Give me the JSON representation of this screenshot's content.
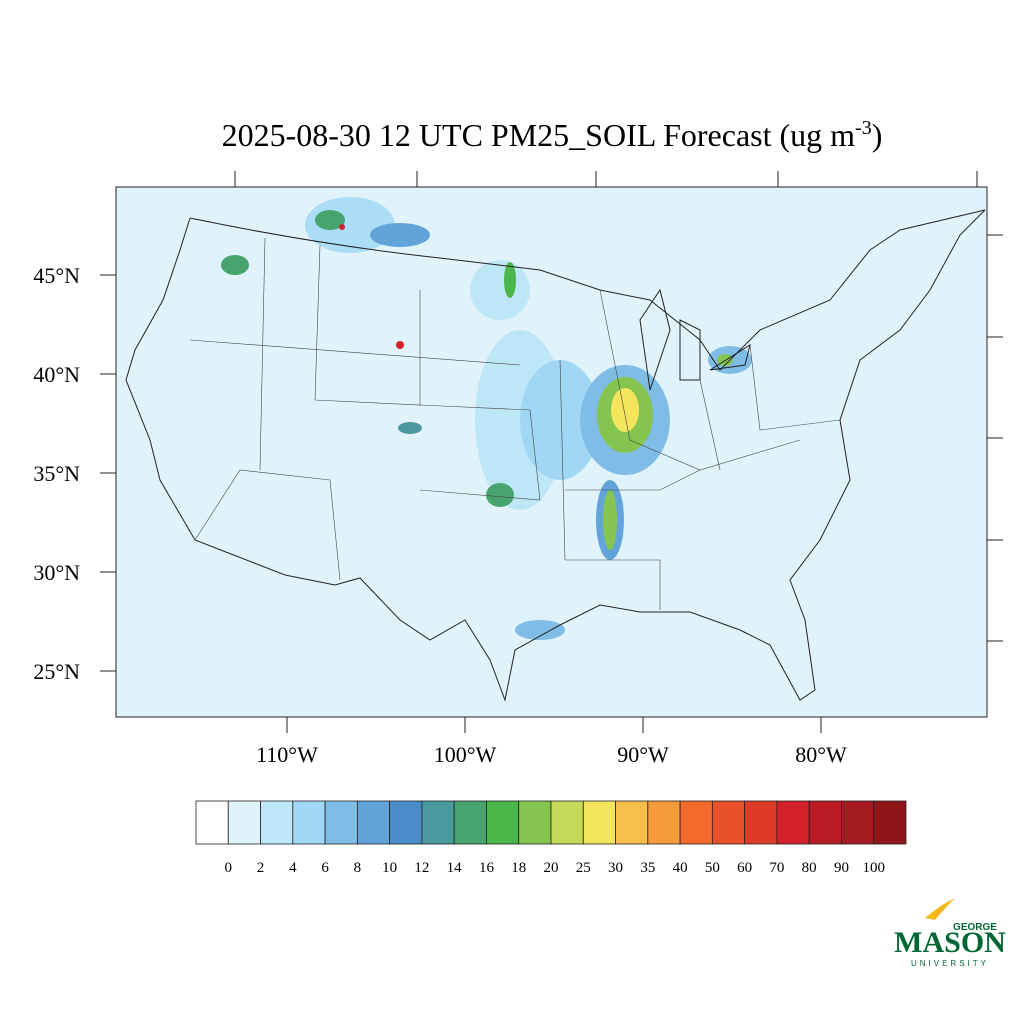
{
  "title": {
    "main": "2025-08-30 12 UTC PM25_SOIL Forecast (ug m",
    "superscript": "-3",
    "end": ")"
  },
  "lat_labels": [
    "45°N",
    "40°N",
    "35°N",
    "30°N",
    "25°N"
  ],
  "lon_labels": [
    "110°W",
    "100°W",
    "90°W",
    "80°W"
  ],
  "colorbar": {
    "colors": [
      "#ffffff",
      "#e0f3fb",
      "#bde6f7",
      "#9fd7f5",
      "#80bde6",
      "#62a4d9",
      "#4a8cc8",
      "#4a9a9d",
      "#48a46f",
      "#4bb649",
      "#85c54f",
      "#c4d95a",
      "#f5e55c",
      "#f7be4c",
      "#f59b3c",
      "#f26b2c",
      "#e8512a",
      "#df3a27",
      "#d42029",
      "#b91c24",
      "#a51a20",
      "#8e1618"
    ],
    "labels": [
      0,
      2,
      4,
      6,
      8,
      10,
      12,
      14,
      16,
      18,
      20,
      25,
      30,
      35,
      40,
      50,
      60,
      70,
      80,
      90,
      100
    ]
  },
  "logo": {
    "top": "GEORGE",
    "main": "MASON",
    "bottom": "UNIVERSITY"
  }
}
